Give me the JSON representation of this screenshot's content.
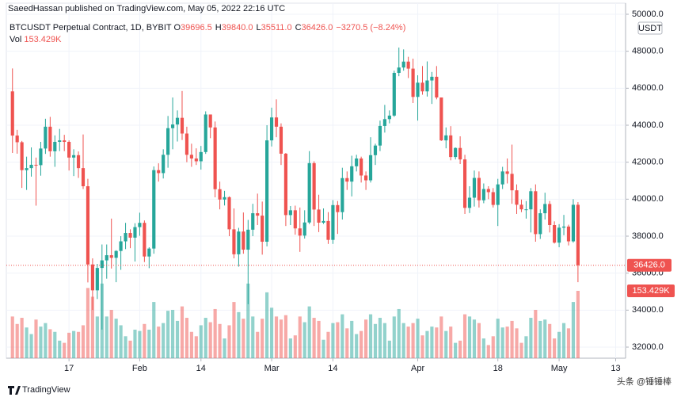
{
  "header": {
    "publisher": "SaeedHassan published on TradingView.com, May 05, 2022 22:16 UTC"
  },
  "chart_data": {
    "type": "candlestick",
    "symbol": "BTCUSDT Perpetual Contract, 1D, BYBIT",
    "ohlc_legend": [
      "O",
      "39696.5",
      "H",
      "39840.0",
      "L",
      "35511.0",
      "C",
      "36426.0",
      "−3270.5 (−8.24%)"
    ],
    "volume_legend": "Vol",
    "volume_value_label": "153.429K",
    "last_price_label": "36426.0",
    "currency": "USDT",
    "up_color": "#26a69a",
    "down_color": "#ef5350",
    "grid": true,
    "ylim": [
      31400,
      50600
    ],
    "yticks": [
      {
        "value": 32000,
        "label": "32000.0"
      },
      {
        "value": 34000,
        "label": "34000.0"
      },
      {
        "value": 36000,
        "label": "36000.0"
      },
      {
        "value": 38000,
        "label": "38000.0"
      },
      {
        "value": 40000,
        "label": "40000.0"
      },
      {
        "value": 42000,
        "label": "42000.0"
      },
      {
        "value": 44000,
        "label": "44000.0"
      },
      {
        "value": 46000,
        "label": "46000.0"
      },
      {
        "value": 48000,
        "label": "48000.0"
      },
      {
        "value": 50000,
        "label": "50000.0"
      }
    ],
    "xlim": [
      -1.3,
      130.1
    ],
    "xticks": [
      {
        "value": 12,
        "label": "17"
      },
      {
        "value": 27,
        "label": "Feb"
      },
      {
        "value": 40,
        "label": "14"
      },
      {
        "value": 55,
        "label": "Mar"
      },
      {
        "value": 68,
        "label": "14"
      },
      {
        "value": 86,
        "label": "Apr"
      },
      {
        "value": 103,
        "label": "18"
      },
      {
        "value": 116,
        "label": "May"
      },
      {
        "value": 128,
        "label": "13"
      }
    ],
    "open": [
      45830,
      43440,
      43080,
      41570,
      41680,
      41860,
      41840,
      42740,
      43920,
      42590,
      43100,
      43180,
      43100,
      42250,
      42380,
      41680,
      40700,
      36470,
      35070,
      36280,
      36690,
      36970,
      36830,
      37200,
      37720,
      38170,
      37920,
      38490,
      38720,
      36900,
      37330,
      41570,
      41410,
      42400,
      43840,
      44040,
      44400,
      43550,
      42400,
      42200,
      42050,
      42550,
      44580,
      43880,
      40540,
      39980,
      40110,
      38370,
      37020,
      38250,
      37270,
      38350,
      39240,
      39110,
      37700,
      43180,
      44420,
      43920,
      42460,
      39140,
      39400,
      38420,
      38030,
      38740,
      41950,
      39440,
      38730,
      38820,
      37800,
      39680,
      39300,
      41140,
      40950,
      41780,
      42200,
      41280,
      41020,
      42380,
      42900,
      43960,
      44330,
      44520,
      46830,
      47120,
      47440,
      47060,
      45530,
      46300,
      45830,
      46420,
      46620,
      45500,
      43180,
      43450,
      42280,
      42770,
      42150,
      39530,
      40080,
      41150,
      39940,
      40550,
      40380,
      39690,
      40800,
      41500,
      41370,
      40480,
      39700,
      39450,
      39450,
      40430,
      38110,
      39240,
      39740,
      38600,
      37650,
      38460,
      38520,
      37720,
      39696.5
    ],
    "high": [
      47070,
      43750,
      43150,
      42300,
      42800,
      42250,
      43100,
      44350,
      44450,
      43450,
      43800,
      43480,
      43180,
      42700,
      42580,
      43500,
      41100,
      36800,
      36500,
      37550,
      37550,
      38950,
      37240,
      38000,
      38720,
      38370,
      38700,
      39270,
      38850,
      37400,
      41770,
      41940,
      42700,
      44500,
      45500,
      44800,
      45850,
      43920,
      43000,
      42750,
      42880,
      44750,
      44580,
      44200,
      40950,
      40450,
      40150,
      39500,
      38450,
      39280,
      38880,
      39750,
      40300,
      39870,
      44000,
      44950,
      45400,
      44100,
      42500,
      39630,
      39650,
      39550,
      39400,
      42600,
      42050,
      40240,
      39500,
      39300,
      39950,
      39900,
      41700,
      41500,
      42350,
      42400,
      42300,
      41500,
      43350,
      43000,
      44250,
      45100,
      44800,
      46950,
      48200,
      48100,
      47700,
      47600,
      46700,
      47200,
      47450,
      46880,
      47200,
      45500,
      43880,
      43950,
      42800,
      43400,
      42400,
      40700,
      41550,
      41500,
      40850,
      40700,
      40600,
      41100,
      41750,
      42200,
      42950,
      40800,
      39980,
      39900,
      40600,
      40800,
      39450,
      40350,
      39900,
      38800,
      38650,
      39150,
      38620,
      40000,
      39840
    ],
    "low": [
      42500,
      42460,
      40610,
      40500,
      41220,
      39650,
      41270,
      42450,
      42300,
      41750,
      42600,
      42600,
      41550,
      41250,
      41150,
      40550,
      35500,
      34010,
      34600,
      32950,
      35700,
      36250,
      35510,
      36180,
      37300,
      37350,
      36630,
      38020,
      36600,
      36270,
      37050,
      40950,
      41120,
      41700,
      42700,
      43120,
      43200,
      42000,
      41750,
      41850,
      41600,
      42450,
      43300,
      40100,
      39450,
      39660,
      38000,
      36800,
      36350,
      37050,
      34320,
      38000,
      38600,
      37000,
      37450,
      42850,
      43350,
      41850,
      38550,
      38600,
      38080,
      37150,
      37870,
      38650,
      38550,
      38220,
      38660,
      37580,
      37580,
      38120,
      38900,
      40500,
      40150,
      41500,
      40900,
      40500,
      40900,
      41850,
      42600,
      43600,
      44100,
      44450,
      46650,
      46950,
      46550,
      45200,
      44250,
      45650,
      45550,
      45150,
      45400,
      43150,
      42750,
      42100,
      42150,
      41900,
      39200,
      39250,
      39600,
      39550,
      39780,
      40000,
      39550,
      38550,
      40550,
      40850,
      39750,
      39200,
      39300,
      38950,
      38200,
      37700,
      37850,
      38900,
      38200,
      37600,
      37400,
      38050,
      37500,
      37650,
      35511
    ],
    "close": [
      43440,
      43080,
      41570,
      41680,
      41860,
      41840,
      42740,
      43920,
      42590,
      43100,
      43180,
      43100,
      42250,
      42380,
      41680,
      40700,
      36470,
      35070,
      36280,
      36690,
      36970,
      36830,
      37200,
      37720,
      38170,
      37920,
      38490,
      38720,
      36900,
      37330,
      41570,
      41410,
      42400,
      43840,
      44040,
      44400,
      43550,
      42400,
      42200,
      42050,
      42550,
      44580,
      43880,
      40540,
      39980,
      40110,
      38370,
      37020,
      38250,
      37270,
      38350,
      39240,
      39110,
      37700,
      43180,
      44420,
      43920,
      42460,
      39140,
      39400,
      38420,
      38030,
      38740,
      41950,
      39440,
      38730,
      38820,
      37800,
      39680,
      39300,
      41140,
      40950,
      41780,
      42200,
      41280,
      41020,
      42380,
      42900,
      43960,
      44330,
      44520,
      46830,
      47120,
      47440,
      47060,
      45530,
      46300,
      45830,
      46420,
      46620,
      45500,
      43180,
      43450,
      42280,
      42770,
      42150,
      39530,
      40080,
      41150,
      39940,
      40550,
      40380,
      39690,
      40800,
      41500,
      41370,
      40480,
      39700,
      39450,
      39450,
      40430,
      38110,
      39240,
      39740,
      38600,
      37650,
      38460,
      38520,
      37720,
      39696.5,
      36426
    ],
    "volume": [
      95,
      78,
      92,
      70,
      55,
      88,
      72,
      80,
      66,
      60,
      40,
      35,
      58,
      62,
      60,
      75,
      160,
      140,
      95,
      170,
      95,
      110,
      90,
      75,
      50,
      40,
      65,
      62,
      78,
      65,
      128,
      72,
      80,
      108,
      110,
      85,
      118,
      92,
      60,
      50,
      75,
      92,
      82,
      112,
      78,
      45,
      75,
      128,
      105,
      90,
      170,
      95,
      60,
      90,
      150,
      115,
      95,
      88,
      98,
      45,
      52,
      95,
      82,
      118,
      92,
      85,
      42,
      60,
      80,
      82,
      100,
      68,
      85,
      55,
      62,
      88,
      100,
      78,
      92,
      80,
      40,
      95,
      112,
      80,
      72,
      80,
      90,
      52,
      62,
      72,
      70,
      95,
      62,
      72,
      35,
      40,
      100,
      95,
      88,
      80,
      45,
      30,
      50,
      90,
      70,
      72,
      85,
      68,
      35,
      50,
      92,
      110,
      85,
      88,
      78,
      45,
      60,
      80,
      68,
      128,
      153.429
    ]
  },
  "footer": {
    "logo": "TradingView",
    "watermark": "头条 @锤锤棒"
  }
}
